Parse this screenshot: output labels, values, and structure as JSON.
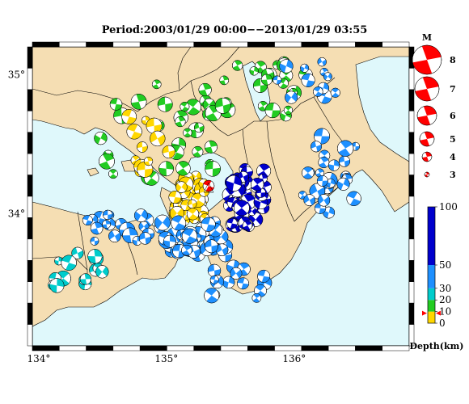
{
  "title": "Period:2003/01/29 00:00−−2013/01/29 03:55",
  "map": {
    "lon_range": [
      133.95,
      136.9
    ],
    "lat_range": [
      33.05,
      35.2
    ],
    "x_ticks": [
      {
        "value": 134,
        "label": "134°"
      },
      {
        "value": 135,
        "label": "135°"
      },
      {
        "value": 136,
        "label": "136°"
      }
    ],
    "y_ticks": [
      {
        "value": 35,
        "label": "35°"
      },
      {
        "value": 34,
        "label": "34°"
      }
    ],
    "sea_color": "#dff8fb",
    "land_color": "#f5deb3"
  },
  "magnitude_legend": {
    "title": "M",
    "levels": [
      {
        "label": "8",
        "magnitude": 8
      },
      {
        "label": "7",
        "magnitude": 7
      },
      {
        "label": "6",
        "magnitude": 6
      },
      {
        "label": "5",
        "magnitude": 5
      },
      {
        "label": "4",
        "magnitude": 4
      },
      {
        "label": "3",
        "magnitude": 3
      }
    ],
    "color": "#ff0000"
  },
  "depth_colorbar": {
    "label": "Depth(km)",
    "ticks": [
      {
        "label": "100",
        "value": 100
      },
      {
        "label": "50",
        "value": 50
      },
      {
        "label": "30",
        "value": 30
      },
      {
        "label": "20",
        "value": 20
      },
      {
        "label": "10",
        "value": 10
      },
      {
        "label": "0",
        "value": 0
      }
    ],
    "bands": [
      {
        "from": 0,
        "to": 10,
        "color": "#ffd700"
      },
      {
        "from": 10,
        "to": 20,
        "color": "#22cc22"
      },
      {
        "from": 20,
        "to": 30,
        "color": "#00cccc"
      },
      {
        "from": 30,
        "to": 50,
        "color": "#1e90ff"
      },
      {
        "from": 50,
        "to": 100,
        "color": "#0000cc"
      }
    ]
  },
  "highlight_event": {
    "lon": 135.33,
    "lat": 34.2,
    "depth_km": 10,
    "color": "#ff0000"
  }
}
